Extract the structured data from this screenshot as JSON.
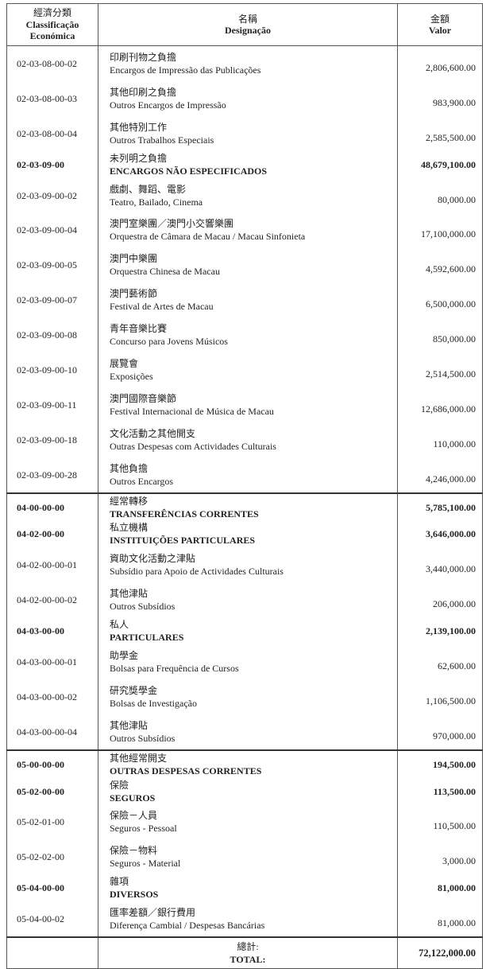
{
  "header": {
    "col1_zh": "經濟分類",
    "col1_pt1": "Classificação",
    "col1_pt2": "Económica",
    "col2_zh": "名稱",
    "col2_pt": "Designação",
    "col3_zh": "金額",
    "col3_pt": "Valor"
  },
  "rows": [
    {
      "code": "02-03-08-00-02",
      "zh": "印刷刊物之負擔",
      "pt": "Encargos de Impressão das Publicações",
      "value": "2,806,600.00",
      "bold": false
    },
    {
      "code": "02-03-08-00-03",
      "zh": "其他印刷之負擔",
      "pt": "Outros Encargos de Impressão",
      "value": "983,900.00",
      "bold": false
    },
    {
      "code": "02-03-08-00-04",
      "zh": "其他特別工作",
      "pt": "Outros Trabalhos Especiais",
      "value": "2,585,500.00",
      "bold": false
    },
    {
      "code": "02-03-09-00",
      "zh": "未列明之負擔",
      "pt": "ENCARGOS NÃO ESPECIFICADOS",
      "value": "48,679,100.00",
      "bold": true
    },
    {
      "code": "02-03-09-00-02",
      "zh": "戲劇、舞蹈、電影",
      "pt": "Teatro, Bailado, Cinema",
      "value": "80,000.00",
      "bold": false
    },
    {
      "code": "02-03-09-00-04",
      "zh": "澳門室樂團／澳門小交響樂團",
      "pt": "Orquestra de Câmara de Macau / Macau Sinfonieta",
      "value": "17,100,000.00",
      "bold": false
    },
    {
      "code": "02-03-09-00-05",
      "zh": "澳門中樂團",
      "pt": "Orquestra Chinesa de Macau",
      "value": "4,592,600.00",
      "bold": false
    },
    {
      "code": "02-03-09-00-07",
      "zh": "澳門藝術節",
      "pt": "Festival de Artes de Macau",
      "value": "6,500,000.00",
      "bold": false
    },
    {
      "code": "02-03-09-00-08",
      "zh": "青年音樂比賽",
      "pt": "Concurso para Jovens Músicos",
      "value": "850,000.00",
      "bold": false
    },
    {
      "code": "02-03-09-00-10",
      "zh": "展覽會",
      "pt": "Exposições",
      "value": "2,514,500.00",
      "bold": false
    },
    {
      "code": "02-03-09-00-11",
      "zh": "澳門國際音樂節",
      "pt": "Festival Internacional de Música de Macau",
      "value": "12,686,000.00",
      "bold": false
    },
    {
      "code": "02-03-09-00-18",
      "zh": "文化活動之其他開支",
      "pt": "Outras Despesas com Actividades Culturais",
      "value": "110,000.00",
      "bold": false
    },
    {
      "code": "02-03-09-00-28",
      "zh": "其他負擔",
      "pt": "Outros Encargos",
      "value": "4,246,000.00",
      "bold": false
    },
    {
      "code": "04-00-00-00",
      "zh": "經常轉移",
      "pt": "TRANSFERÊNCIAS CORRENTES",
      "value": "5,785,100.00",
      "bold": true,
      "sep": true
    },
    {
      "code": "04-02-00-00",
      "zh": "私立機構",
      "pt": "INSTITUIÇÕES PARTICULARES",
      "value": "3,646,000.00",
      "bold": true
    },
    {
      "code": "04-02-00-00-01",
      "zh": "資助文化活動之津貼",
      "pt": "Subsídio para Apoio de Actividades Culturais",
      "value": "3,440,000.00",
      "bold": false
    },
    {
      "code": "04-02-00-00-02",
      "zh": "其他津貼",
      "pt": "Outros Subsídios",
      "value": "206,000.00",
      "bold": false
    },
    {
      "code": "04-03-00-00",
      "zh": "私人",
      "pt": "PARTICULARES",
      "value": "2,139,100.00",
      "bold": true
    },
    {
      "code": "04-03-00-00-01",
      "zh": "助學金",
      "pt": "Bolsas para Frequência de Cursos",
      "value": "62,600.00",
      "bold": false
    },
    {
      "code": "04-03-00-00-02",
      "zh": "研究獎學金",
      "pt": "Bolsas de Investigação",
      "value": "1,106,500.00",
      "bold": false
    },
    {
      "code": "04-03-00-00-04",
      "zh": "其他津貼",
      "pt": "Outros Subsídios",
      "value": "970,000.00",
      "bold": false
    },
    {
      "code": "05-00-00-00",
      "zh": "其他經常開支",
      "pt": "OUTRAS DESPESAS CORRENTES",
      "value": "194,500.00",
      "bold": true,
      "sep": true
    },
    {
      "code": "05-02-00-00",
      "zh": "保險",
      "pt": "SEGUROS",
      "value": "113,500.00",
      "bold": true
    },
    {
      "code": "05-02-01-00",
      "zh": "保險－人員",
      "pt": "Seguros - Pessoal",
      "value": "110,500.00",
      "bold": false
    },
    {
      "code": "05-02-02-00",
      "zh": "保險－物料",
      "pt": "Seguros - Material",
      "value": "3,000.00",
      "bold": false
    },
    {
      "code": "05-04-00-00",
      "zh": "雜項",
      "pt": "DIVERSOS",
      "value": "81,000.00",
      "bold": true
    },
    {
      "code": "05-04-00-02",
      "zh": "匯率差額／銀行費用",
      "pt": "Diferença Cambial / Despesas Bancárias",
      "value": "81,000.00",
      "bold": false
    }
  ],
  "total": {
    "zh": "總計:",
    "pt": "TOTAL:",
    "value": "72,122,000.00"
  }
}
